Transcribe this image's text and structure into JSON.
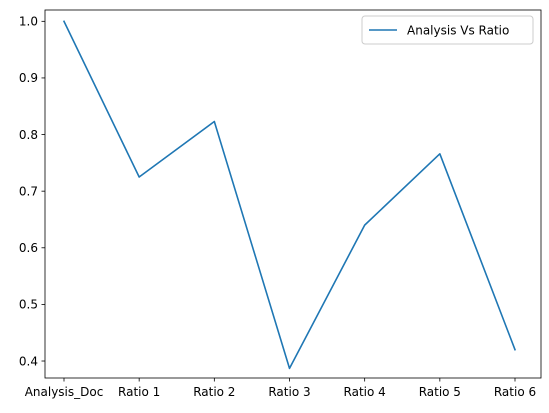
{
  "chart_data": {
    "type": "line",
    "title": "",
    "xlabel": "",
    "ylabel": "",
    "categories": [
      "Analysis_Doc",
      "Ratio 1",
      "Ratio 2",
      "Ratio 3",
      "Ratio 4",
      "Ratio 5",
      "Ratio 6"
    ],
    "series": [
      {
        "name": "Analysis Vs Ratio",
        "values": [
          1.0,
          0.725,
          0.823,
          0.387,
          0.64,
          0.766,
          0.42
        ],
        "color": "#1f77b4"
      }
    ],
    "ylim": [
      0.37,
      1.02
    ],
    "yticks": [
      "0.4",
      "0.5",
      "0.6",
      "0.7",
      "0.8",
      "0.9",
      "1.0"
    ],
    "grid": false,
    "legend_position": "top-right"
  }
}
